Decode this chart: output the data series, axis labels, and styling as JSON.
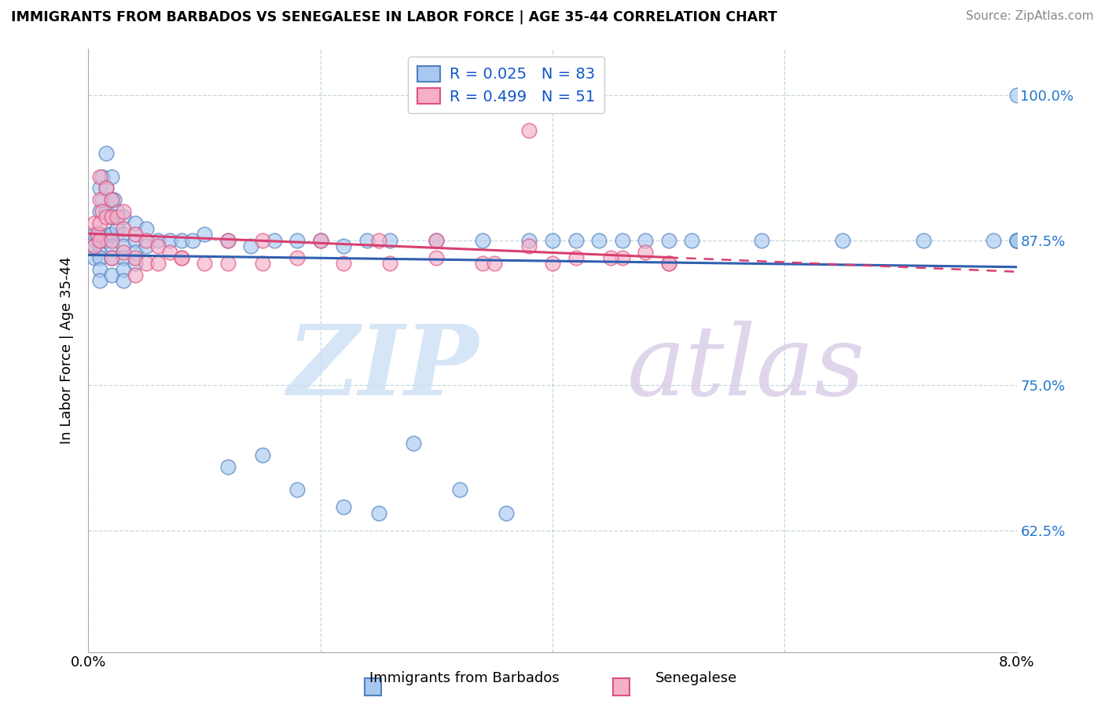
{
  "title": "IMMIGRANTS FROM BARBADOS VS SENEGALESE IN LABOR FORCE | AGE 35-44 CORRELATION CHART",
  "source": "Source: ZipAtlas.com",
  "ylabel": "In Labor Force | Age 35-44",
  "xlim": [
    0.0,
    0.08
  ],
  "ylim": [
    0.52,
    1.04
  ],
  "xticks": [
    0.0,
    0.02,
    0.04,
    0.06,
    0.08
  ],
  "yticks": [
    0.625,
    0.75,
    0.875,
    1.0
  ],
  "ytick_labels": [
    "62.5%",
    "75.0%",
    "87.5%",
    "100.0%"
  ],
  "blue_R": 0.025,
  "blue_N": 83,
  "pink_R": 0.499,
  "pink_N": 51,
  "blue_color": "#a8c8f0",
  "pink_color": "#f4b0c8",
  "blue_edge_color": "#5080c0",
  "pink_edge_color": "#e05080",
  "blue_line_color": "#3060b0",
  "pink_line_color": "#d84070",
  "legend_label_blue": "Immigrants from Barbados",
  "legend_label_pink": "Senegalese",
  "blue_x": [
    0.0005,
    0.0005,
    0.0005,
    0.0005,
    0.0008,
    0.001,
    0.001,
    0.001,
    0.001,
    0.001,
    0.001,
    0.001,
    0.001,
    0.0012,
    0.0012,
    0.0015,
    0.0015,
    0.0015,
    0.0015,
    0.0018,
    0.002,
    0.002,
    0.002,
    0.002,
    0.002,
    0.002,
    0.002,
    0.0022,
    0.0022,
    0.0025,
    0.0025,
    0.003,
    0.003,
    0.003,
    0.003,
    0.003,
    0.003,
    0.004,
    0.004,
    0.004,
    0.004,
    0.005,
    0.005,
    0.006,
    0.007,
    0.008,
    0.009,
    0.01,
    0.012,
    0.014,
    0.016,
    0.018,
    0.02,
    0.022,
    0.024,
    0.026,
    0.03,
    0.034,
    0.038,
    0.042,
    0.046,
    0.05,
    0.012,
    0.015,
    0.018,
    0.022,
    0.025,
    0.028,
    0.032,
    0.036,
    0.04,
    0.044,
    0.048,
    0.052,
    0.058,
    0.065,
    0.072,
    0.078,
    0.08,
    0.08,
    0.08,
    0.08,
    0.08
  ],
  "blue_y": [
    0.875,
    0.88,
    0.87,
    0.86,
    0.88,
    0.92,
    0.9,
    0.88,
    0.87,
    0.86,
    0.85,
    0.84,
    0.875,
    0.93,
    0.91,
    0.95,
    0.92,
    0.9,
    0.875,
    0.88,
    0.93,
    0.91,
    0.895,
    0.88,
    0.87,
    0.86,
    0.845,
    0.91,
    0.895,
    0.9,
    0.885,
    0.895,
    0.88,
    0.87,
    0.86,
    0.85,
    0.84,
    0.89,
    0.875,
    0.865,
    0.855,
    0.885,
    0.87,
    0.875,
    0.875,
    0.875,
    0.875,
    0.88,
    0.875,
    0.87,
    0.875,
    0.875,
    0.875,
    0.87,
    0.875,
    0.875,
    0.875,
    0.875,
    0.875,
    0.875,
    0.875,
    0.875,
    0.68,
    0.69,
    0.66,
    0.645,
    0.64,
    0.7,
    0.66,
    0.64,
    0.875,
    0.875,
    0.875,
    0.875,
    0.875,
    0.875,
    0.875,
    0.875,
    0.875,
    0.875,
    0.875,
    0.875,
    1.0
  ],
  "pink_x": [
    0.0005,
    0.0005,
    0.0008,
    0.001,
    0.001,
    0.001,
    0.001,
    0.0012,
    0.0015,
    0.0015,
    0.002,
    0.002,
    0.002,
    0.002,
    0.0025,
    0.003,
    0.003,
    0.003,
    0.004,
    0.004,
    0.004,
    0.005,
    0.005,
    0.006,
    0.007,
    0.008,
    0.01,
    0.012,
    0.015,
    0.018,
    0.022,
    0.026,
    0.03,
    0.034,
    0.038,
    0.042,
    0.046,
    0.05,
    0.048,
    0.035,
    0.04,
    0.045,
    0.05,
    0.038,
    0.03,
    0.025,
    0.02,
    0.015,
    0.012,
    0.008,
    0.006
  ],
  "pink_y": [
    0.89,
    0.87,
    0.88,
    0.93,
    0.91,
    0.89,
    0.875,
    0.9,
    0.92,
    0.895,
    0.91,
    0.895,
    0.875,
    0.86,
    0.895,
    0.9,
    0.885,
    0.865,
    0.88,
    0.86,
    0.845,
    0.875,
    0.855,
    0.87,
    0.865,
    0.86,
    0.855,
    0.855,
    0.855,
    0.86,
    0.855,
    0.855,
    0.86,
    0.855,
    0.87,
    0.86,
    0.86,
    0.855,
    0.865,
    0.855,
    0.855,
    0.86,
    0.855,
    0.97,
    0.875,
    0.875,
    0.875,
    0.875,
    0.875,
    0.86,
    0.855
  ]
}
